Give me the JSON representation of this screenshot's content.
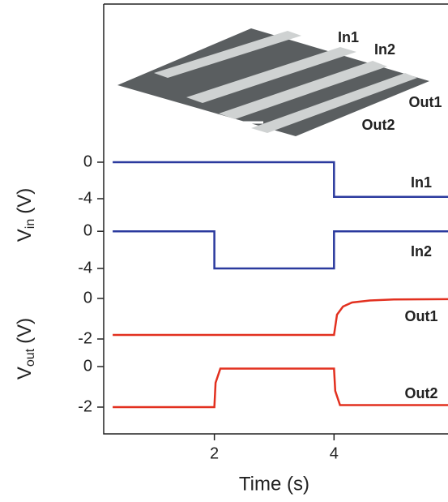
{
  "chart_data": {
    "type": "line",
    "xlabel": "Time (s)",
    "xlim": [
      0.15,
      6
    ],
    "xticks": [
      2,
      4
    ],
    "inset_labels": [
      "In1",
      "In2",
      "Out1",
      "Out2"
    ],
    "groups": [
      {
        "ylabel": "V",
        "ylabel_sub": "in",
        "ylabel_unit": "(V)"
      },
      {
        "ylabel": "V",
        "ylabel_sub": "out",
        "ylabel_unit": "(V)"
      }
    ],
    "panels": [
      {
        "name": "In1",
        "color": "#2b3a9e",
        "ylim": [
          -5,
          1
        ],
        "yticks": [
          0,
          -4
        ],
        "x": [
          0.3,
          4,
          4,
          6
        ],
        "values": [
          0,
          0,
          -3.8,
          -3.8
        ]
      },
      {
        "name": "In2",
        "color": "#2b3a9e",
        "ylim": [
          -5,
          1
        ],
        "yticks": [
          0,
          -4
        ],
        "x": [
          0.3,
          2,
          2,
          4,
          4,
          6
        ],
        "values": [
          0,
          0,
          -4,
          -4,
          0,
          0
        ]
      },
      {
        "name": "Out1",
        "color": "#e2301f",
        "ylim": [
          -2.5,
          0.5
        ],
        "yticks": [
          0,
          -2
        ],
        "x": [
          0.3,
          1.2,
          4,
          4.05,
          4.15,
          4.3,
          4.6,
          5,
          6
        ],
        "values": [
          -1.8,
          -1.8,
          -1.8,
          -0.8,
          -0.4,
          -0.2,
          -0.1,
          -0.05,
          -0.03
        ]
      },
      {
        "name": "Out2",
        "color": "#e2301f",
        "ylim": [
          -2.5,
          0.5
        ],
        "yticks": [
          0,
          -2
        ],
        "x": [
          0.3,
          2,
          2.02,
          2.1,
          4,
          4.02,
          4.1,
          6
        ],
        "values": [
          -2,
          -2,
          -0.8,
          -0.1,
          -0.1,
          -1.2,
          -1.9,
          -1.9
        ]
      }
    ]
  }
}
